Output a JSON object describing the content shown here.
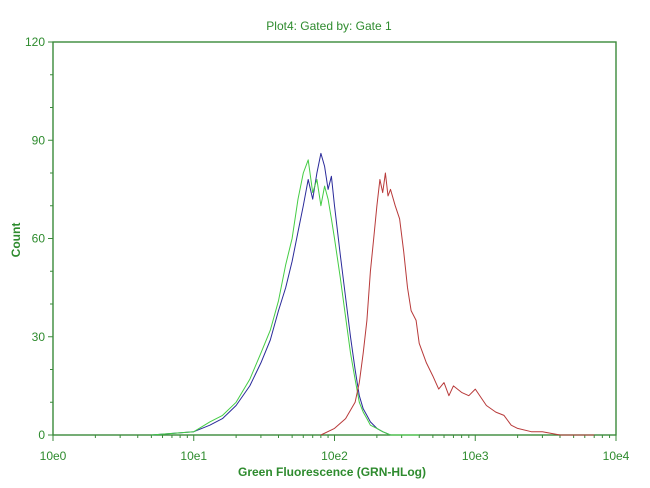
{
  "chart_data": {
    "type": "line",
    "title": "Plot4:  Gated by: Gate 1",
    "xlabel": "Green Fluorescence (GRN-HLog)",
    "ylabel": "Count",
    "x_scale": "log",
    "xlim": [
      1,
      10000
    ],
    "ylim": [
      0,
      120
    ],
    "x_ticks": [
      {
        "value": 1,
        "label": "10e0"
      },
      {
        "value": 10,
        "label": "10e1"
      },
      {
        "value": 100,
        "label": "10e2"
      },
      {
        "value": 1000,
        "label": "10e3"
      },
      {
        "value": 10000,
        "label": "10e4"
      }
    ],
    "y_ticks": [
      0,
      30,
      60,
      90,
      120
    ],
    "grid": false,
    "legend": "none",
    "series": [
      {
        "color": "#2a2a9a",
        "x": [
          5,
          10,
          13,
          16,
          20,
          25,
          30,
          35,
          40,
          45,
          50,
          55,
          60,
          65,
          70,
          75,
          80,
          85,
          90,
          95,
          100,
          110,
          120,
          130,
          140,
          150,
          160,
          170,
          180,
          200,
          220,
          250,
          300,
          400
        ],
        "y": [
          0,
          1,
          3,
          5,
          9,
          15,
          22,
          29,
          38,
          45,
          53,
          62,
          70,
          78,
          72,
          80,
          86,
          82,
          75,
          79,
          70,
          55,
          42,
          30,
          20,
          12,
          8,
          6,
          4,
          2,
          1,
          0,
          0,
          0
        ]
      },
      {
        "color": "#44cc44",
        "x": [
          5,
          10,
          13,
          16,
          20,
          25,
          30,
          35,
          40,
          45,
          50,
          55,
          60,
          65,
          70,
          75,
          80,
          85,
          90,
          95,
          100,
          110,
          120,
          130,
          140,
          150,
          160,
          170,
          180,
          200,
          220,
          250,
          300,
          400
        ],
        "y": [
          0,
          1,
          4,
          6,
          10,
          17,
          25,
          32,
          41,
          52,
          60,
          72,
          80,
          84,
          74,
          78,
          70,
          76,
          72,
          66,
          60,
          48,
          36,
          25,
          17,
          10,
          7,
          5,
          3,
          2,
          1,
          0,
          0,
          0
        ]
      },
      {
        "color": "#b83a3a",
        "x": [
          80,
          100,
          120,
          140,
          150,
          160,
          170,
          180,
          190,
          200,
          210,
          220,
          230,
          240,
          250,
          270,
          290,
          310,
          330,
          350,
          380,
          400,
          450,
          500,
          550,
          600,
          650,
          700,
          800,
          900,
          1000,
          1200,
          1400,
          1600,
          1800,
          2000,
          2500,
          3000,
          4000,
          5000,
          7000
        ],
        "y": [
          0,
          2,
          5,
          10,
          16,
          25,
          35,
          50,
          60,
          70,
          78,
          74,
          80,
          73,
          75,
          70,
          66,
          56,
          45,
          38,
          35,
          28,
          22,
          18,
          14,
          16,
          12,
          15,
          13,
          12,
          14,
          9,
          7,
          6,
          3,
          2,
          1,
          1,
          0,
          0,
          0
        ]
      }
    ]
  }
}
